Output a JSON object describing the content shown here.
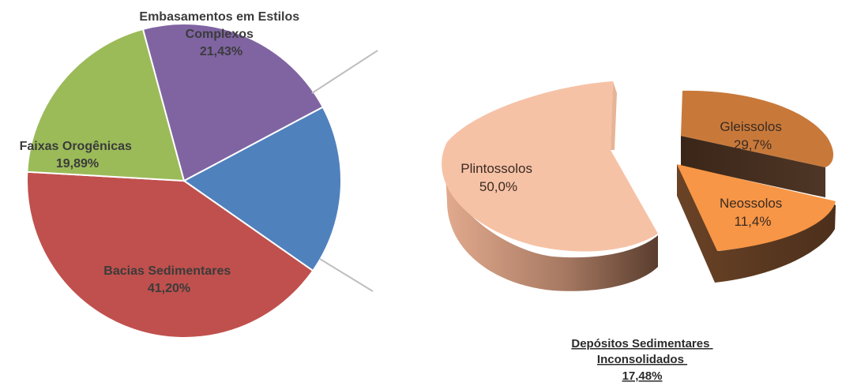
{
  "chart_data": [
    {
      "type": "pie",
      "title": "",
      "slices": [
        {
          "label": "Bacias Sedimentares",
          "value": 41.2,
          "display": "41,20%",
          "color": "#c0504d"
        },
        {
          "label": "Faixas Orogênicas",
          "value": 19.89,
          "display": "19,89%",
          "color": "#9bbb59"
        },
        {
          "label": "Embasamentos em Estilos Complexos",
          "value": 21.43,
          "display": "21,43%",
          "color": "#8064a2"
        },
        {
          "label": "Depósitos Sedimentares Inconsolidados",
          "value": 17.48,
          "display": "17,48%",
          "color": "#4f81bd",
          "exploded_into": 1
        }
      ],
      "label_lines": {
        "embasamentos": [
          "Embasamentos em Estilos",
          "Complexos",
          "21,43%"
        ],
        "faixas": [
          "Faixas Orogênicas",
          "19,89%"
        ],
        "bacias": [
          "Bacias Sedimentares",
          "41,20%"
        ]
      }
    },
    {
      "type": "pie",
      "title": "",
      "style": "3d-exploded",
      "slices": [
        {
          "label": "Plintossolos",
          "value": 50.0,
          "display": "50,0%",
          "color": "#f6c2a6"
        },
        {
          "label": "Gleissolos",
          "value": 29.7,
          "display": "29,7%",
          "color": "#c8793a"
        },
        {
          "label": "Neossolos",
          "value": 11.4,
          "display": "11,4%",
          "color": "#f79646"
        }
      ],
      "caption": [
        "Depósitos Sedimentares",
        "Inconsolidados",
        "17,48%"
      ]
    }
  ]
}
